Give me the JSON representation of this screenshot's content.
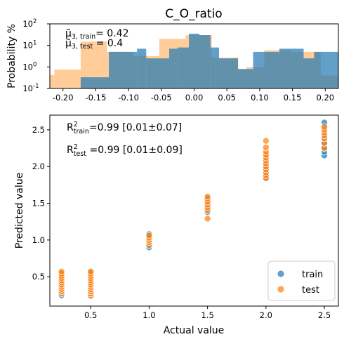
{
  "chart_data": [
    {
      "type": "histogram",
      "title": "C_O_ratio",
      "ylabel": "Probability %",
      "yscale": "log",
      "xlim": [
        -0.22,
        0.22
      ],
      "ylim": [
        0.1,
        100
      ],
      "xticks": [
        "-0.20",
        "-0.15",
        "-0.10",
        "-0.05",
        "0.00",
        "0.05",
        "0.10",
        "0.15",
        "0.20"
      ],
      "yticks": [
        "10^-1",
        "10^0",
        "10^1",
        "10^2"
      ],
      "annotations": {
        "train": {
          "prefix": "μ̃",
          "sub": "3, train",
          "text": "= 0.42"
        },
        "test": {
          "prefix": "μ̃",
          "sub": "3, test",
          "text": " = 0.4"
        }
      },
      "series": [
        {
          "name": "train",
          "color": "#1f77b4",
          "bins": [
            {
              "x0": -0.173,
              "x1": -0.13,
              "value": 0.33
            },
            {
              "x0": -0.13,
              "x1": -0.087,
              "value": 5.0
            },
            {
              "x0": -0.087,
              "x1": -0.073,
              "value": 7.0
            },
            {
              "x0": -0.073,
              "x1": -0.038,
              "value": 2.5
            },
            {
              "x0": -0.038,
              "x1": -0.025,
              "value": 7.0
            },
            {
              "x0": -0.025,
              "x1": -0.008,
              "value": 8.0
            },
            {
              "x0": -0.008,
              "x1": 0.008,
              "value": 35.0
            },
            {
              "x0": 0.008,
              "x1": 0.025,
              "value": 30.0
            },
            {
              "x0": 0.025,
              "x1": 0.038,
              "value": 8.0
            },
            {
              "x0": 0.038,
              "x1": 0.067,
              "value": 2.5
            },
            {
              "x0": 0.067,
              "x1": 0.09,
              "value": 0.8
            },
            {
              "x0": 0.09,
              "x1": 0.13,
              "value": 5.0
            },
            {
              "x0": 0.13,
              "x1": 0.167,
              "value": 7.0
            },
            {
              "x0": 0.167,
              "x1": 0.183,
              "value": 2.5
            },
            {
              "x0": 0.183,
              "x1": 0.22,
              "value": 5.0
            }
          ]
        },
        {
          "name": "test",
          "color": "#ffbb78",
          "bins": [
            {
              "x0": -0.22,
              "x1": -0.213,
              "value": 0.42
            },
            {
              "x0": -0.213,
              "x1": -0.173,
              "value": 0.75
            },
            {
              "x0": -0.173,
              "x1": -0.133,
              "value": 15.0
            },
            {
              "x0": -0.133,
              "x1": -0.093,
              "value": 5.0
            },
            {
              "x0": -0.093,
              "x1": -0.053,
              "value": 3.2
            },
            {
              "x0": -0.053,
              "x1": -0.013,
              "value": 20.0
            },
            {
              "x0": -0.013,
              "x1": 0.027,
              "value": 30.0
            },
            {
              "x0": 0.027,
              "x1": 0.067,
              "value": 2.7
            },
            {
              "x0": 0.067,
              "x1": 0.08,
              "value": 0.8
            },
            {
              "x0": 0.08,
              "x1": 0.107,
              "value": 1.0
            },
            {
              "x0": 0.107,
              "x1": 0.147,
              "value": 6.0
            },
            {
              "x0": 0.147,
              "x1": 0.193,
              "value": 5.0
            },
            {
              "x0": 0.193,
              "x1": 0.22,
              "value": 0.4
            }
          ]
        }
      ]
    },
    {
      "type": "scatter",
      "xlabel": "Actual value",
      "ylabel": "Predicted value",
      "xlim": [
        0.15,
        2.62
      ],
      "ylim": [
        0.1,
        2.7
      ],
      "xticks": [
        "0.5",
        "1.0",
        "1.5",
        "2.0",
        "2.5"
      ],
      "yticks": [
        "0.5",
        "1.0",
        "1.5",
        "2.0",
        "2.5"
      ],
      "legend_position": "lower-right",
      "annotations": {
        "train": {
          "label": "R",
          "sup": "2",
          "sub": "train",
          "text": "=0.99 [0.01±0.07]"
        },
        "test": {
          "label": "R",
          "sup": "2",
          "sub": "test",
          "text": " =0.99 [0.01±0.09]"
        }
      },
      "series": [
        {
          "name": "train",
          "color": "#1f77b4",
          "groups": [
            {
              "x": 0.25,
              "y": [
                0.24,
                0.25,
                0.27,
                0.29,
                0.31,
                0.33,
                0.35,
                0.37,
                0.39,
                0.41,
                0.43,
                0.45,
                0.48,
                0.51,
                0.54
              ]
            },
            {
              "x": 0.5,
              "y": [
                0.25,
                0.28,
                0.31,
                0.34,
                0.37,
                0.4,
                0.43,
                0.46,
                0.49,
                0.53,
                0.56
              ]
            },
            {
              "x": 1.0,
              "y": [
                0.9,
                0.93,
                0.96,
                0.99,
                1.02,
                1.05,
                1.08
              ]
            },
            {
              "x": 1.5,
              "y": [
                1.38,
                1.42,
                1.46,
                1.5,
                1.54,
                1.57
              ]
            },
            {
              "x": 2.0,
              "y": [
                1.85,
                1.9,
                1.95,
                2.0,
                2.05,
                2.1,
                2.15
              ]
            },
            {
              "x": 2.5,
              "y": [
                2.15,
                2.2,
                2.26,
                2.32,
                2.38,
                2.44,
                2.5,
                2.55,
                2.6
              ]
            }
          ]
        },
        {
          "name": "test",
          "color": "#ff7f0e",
          "groups": [
            {
              "x": 0.25,
              "y": [
                0.27,
                0.3,
                0.33,
                0.36,
                0.39,
                0.42,
                0.45,
                0.48,
                0.51,
                0.54,
                0.57
              ]
            },
            {
              "x": 0.5,
              "y": [
                0.24,
                0.27,
                0.3,
                0.33,
                0.36,
                0.39,
                0.42,
                0.45,
                0.48,
                0.51,
                0.54,
                0.57
              ]
            },
            {
              "x": 1.0,
              "y": [
                0.93,
                0.97,
                1.0,
                1.03,
                1.06
              ]
            },
            {
              "x": 1.5,
              "y": [
                1.29,
                1.4,
                1.44,
                1.48,
                1.52,
                1.56,
                1.59
              ]
            },
            {
              "x": 2.0,
              "y": [
                1.84,
                1.88,
                1.92,
                1.96,
                2.0,
                2.04,
                2.08,
                2.12,
                2.16,
                2.2,
                2.26,
                2.35
              ]
            },
            {
              "x": 2.5,
              "y": [
                2.25,
                2.32,
                2.38,
                2.42,
                2.46,
                2.5,
                2.54
              ]
            }
          ]
        }
      ]
    }
  ]
}
